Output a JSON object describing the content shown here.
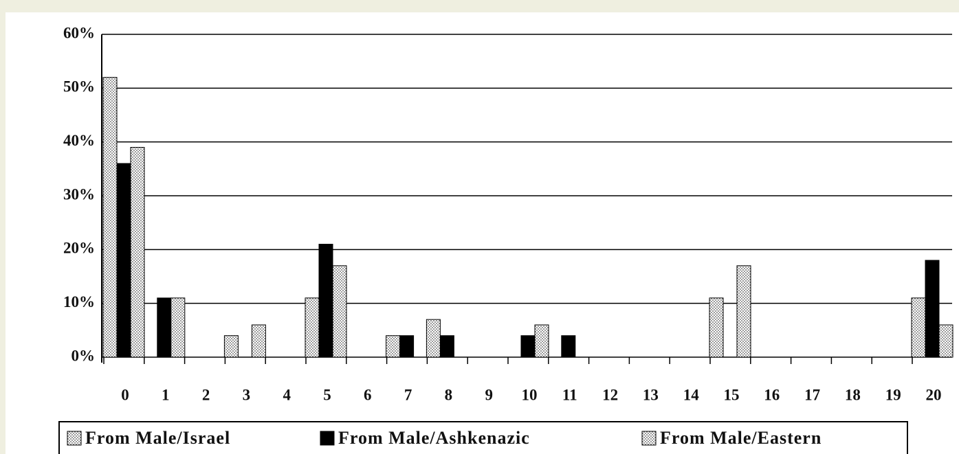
{
  "chart_data": {
    "type": "bar",
    "categories": [
      "0",
      "1",
      "2",
      "3",
      "4",
      "5",
      "6",
      "7",
      "8",
      "9",
      "10",
      "11",
      "12",
      "13",
      "14",
      "15",
      "16",
      "17",
      "18",
      "19",
      "20"
    ],
    "series": [
      {
        "name": "From Male/Israel",
        "color": "#e6e6e6",
        "values": [
          52,
          0,
          0,
          4,
          0,
          11,
          0,
          4,
          7,
          0,
          0,
          0,
          0,
          0,
          0,
          11,
          0,
          0,
          0,
          0,
          11
        ]
      },
      {
        "name": "From Male/Ashkenazic",
        "color": "#000000",
        "values": [
          36,
          11,
          0,
          0,
          0,
          21,
          0,
          4,
          4,
          0,
          4,
          4,
          0,
          0,
          0,
          0,
          0,
          0,
          0,
          0,
          18
        ]
      },
      {
        "name": "From Male/Eastern",
        "color": "#cfcfcf",
        "values": [
          39,
          11,
          0,
          6,
          0,
          17,
          0,
          0,
          0,
          0,
          6,
          0,
          0,
          0,
          0,
          17,
          0,
          0,
          0,
          0,
          6
        ]
      }
    ],
    "ylim": [
      0,
      60
    ],
    "yticks": [
      {
        "value": 0,
        "label": "0%"
      },
      {
        "value": 10,
        "label": "10%"
      },
      {
        "value": 20,
        "label": "20%"
      },
      {
        "value": 30,
        "label": "30%"
      },
      {
        "value": 40,
        "label": "40%"
      },
      {
        "value": 50,
        "label": "50%"
      },
      {
        "value": 60,
        "label": "60%"
      }
    ],
    "grid": true
  }
}
